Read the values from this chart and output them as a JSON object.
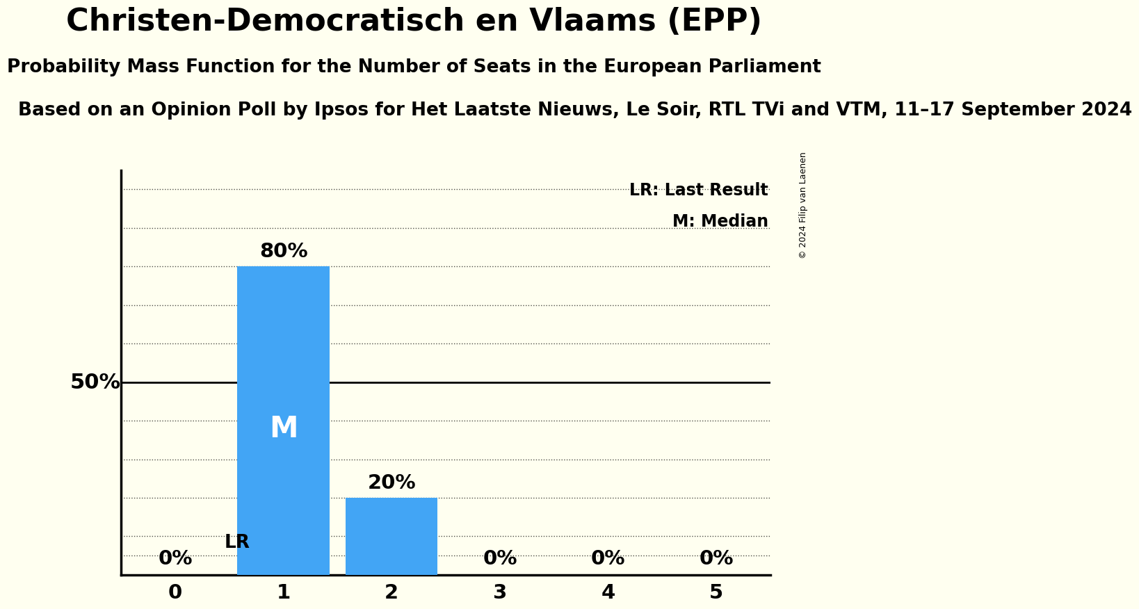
{
  "title": "Christen-Democratisch en Vlaams (EPP)",
  "subtitle": "Probability Mass Function for the Number of Seats in the European Parliament",
  "third_line": "Based on an Opinion Poll by Ipsos for Het Laatste Nieuws, Le Soir, RTL TVi and VTM, 11–17 September 2024",
  "copyright": "© 2024 Filip van Laenen",
  "categories": [
    0,
    1,
    2,
    3,
    4,
    5
  ],
  "values": [
    0.0,
    0.8,
    0.2,
    0.0,
    0.0,
    0.0
  ],
  "bar_color": "#42A5F5",
  "background_color": "#FFFFF0",
  "median_bar": 1,
  "lr_value": 0.05,
  "annotations": {
    "0": "0%",
    "1": "80%",
    "2": "20%",
    "3": "0%",
    "4": "0%",
    "5": "0%"
  },
  "median_label": "M",
  "lr_label": "LR",
  "legend_lr": "LR: Last Result",
  "legend_m": "M: Median",
  "yticks": [
    0.0,
    0.1,
    0.2,
    0.3,
    0.4,
    0.5,
    0.6,
    0.7,
    0.8,
    0.9,
    1.0
  ],
  "ylabel_50_pct": "50%",
  "title_fontsize": 32,
  "subtitle_fontsize": 19,
  "thirdline_fontsize": 19,
  "annotation_fontsize": 21,
  "tick_fontsize": 21,
  "legend_fontsize": 17,
  "ylabel_fontsize": 22,
  "m_fontsize": 30,
  "lr_fontsize": 19,
  "copyright_fontsize": 9,
  "bar_width": 0.85
}
